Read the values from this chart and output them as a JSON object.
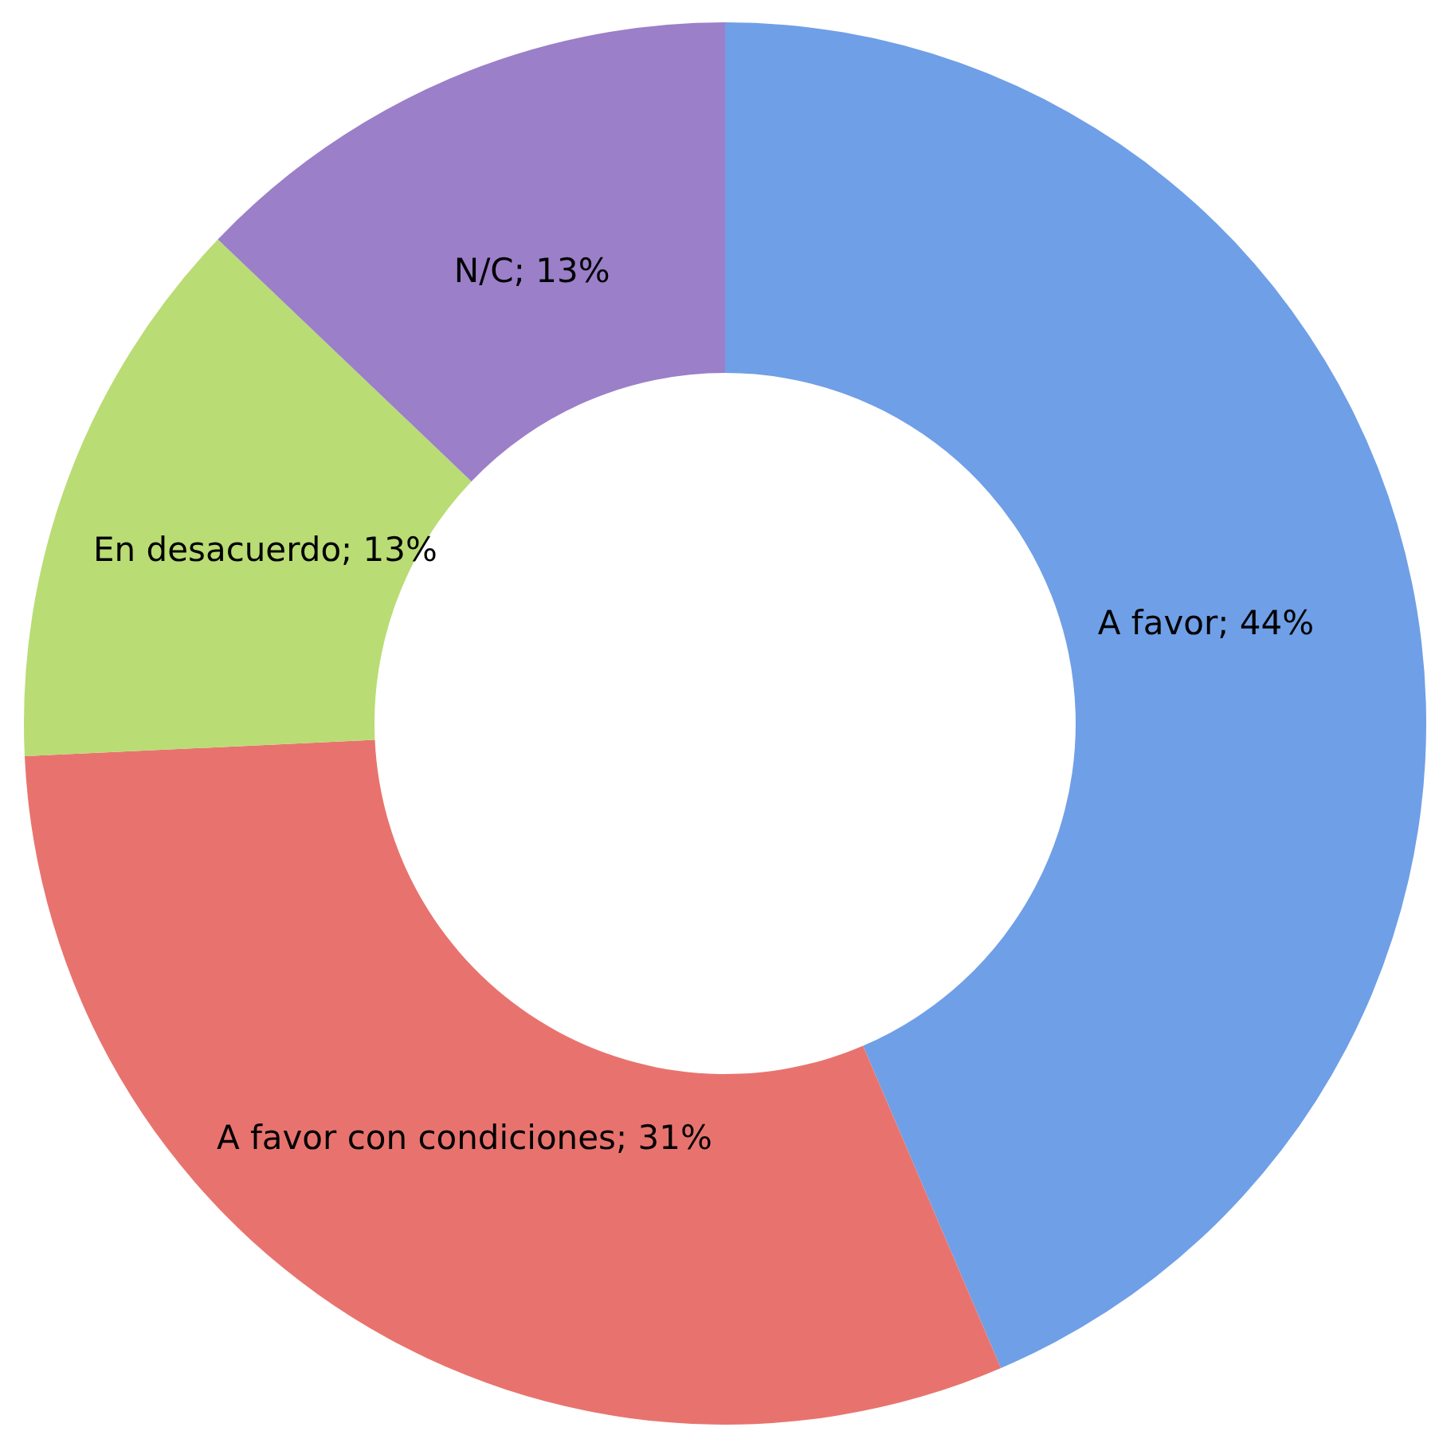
{
  "chart_data": {
    "type": "donut",
    "categories": [
      "A favor",
      "A favor con condiciones",
      "En desacuerdo",
      "N/C"
    ],
    "values": [
      44,
      31,
      13,
      13
    ],
    "value_labels": [
      "; 44%",
      "; 31%",
      "; 13%",
      "; 13%"
    ],
    "colors": [
      "#6f9fe6",
      "#e8736e",
      "#b9dc74",
      "#9b7fc8"
    ],
    "legend": false
  }
}
